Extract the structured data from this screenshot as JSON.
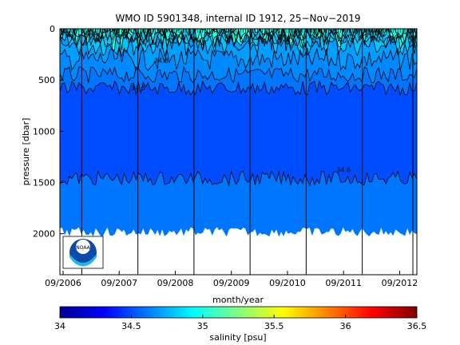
{
  "chart_data": {
    "type": "heatmap",
    "title": "WMO ID 5901348, internal ID 1912, 25−Nov−2019",
    "xlabel": "month/year",
    "ylabel": "pressure [dbar]",
    "x_ticks": [
      "09/2006",
      "09/2007",
      "09/2008",
      "09/2009",
      "09/2010",
      "09/2011",
      "09/2012"
    ],
    "y_ticks": [
      0,
      500,
      1000,
      1500,
      2000
    ],
    "ylim": [
      2400,
      0
    ],
    "y_reversed": true,
    "x_range": [
      "2006-09",
      "2012-12"
    ],
    "layers": [
      {
        "from": 0,
        "to": 80,
        "salinity": 35.0
      },
      {
        "from": 80,
        "to": 160,
        "salinity": 34.8
      },
      {
        "from": 160,
        "to": 300,
        "salinity": 34.7
      },
      {
        "from": 300,
        "to": 450,
        "salinity": 34.65
      },
      {
        "from": 450,
        "to": 580,
        "salinity": 34.6
      },
      {
        "from": 580,
        "to": 1460,
        "salinity": 34.5
      },
      {
        "from": 1460,
        "to": 1980,
        "salinity": 34.6
      }
    ],
    "contour_labels": [
      {
        "text": "34.8",
        "month": "2008-06",
        "pressure": 330
      },
      {
        "text": "34.6",
        "month": "2008-01",
        "pressure": 600
      },
      {
        "text": "34.6",
        "month": "2011-09",
        "pressure": 1400
      }
    ],
    "colorbar": {
      "label": "salinity [psu]",
      "range": [
        34,
        36.5
      ],
      "ticks": [
        34,
        34.5,
        35,
        35.5,
        36,
        36.5
      ],
      "colormap": [
        "#00008f",
        "#0000ff",
        "#0080ff",
        "#00ffff",
        "#80ff80",
        "#ffff00",
        "#ff8000",
        "#ff0000",
        "#800000"
      ]
    },
    "legend_logo": "noaa-logo"
  }
}
